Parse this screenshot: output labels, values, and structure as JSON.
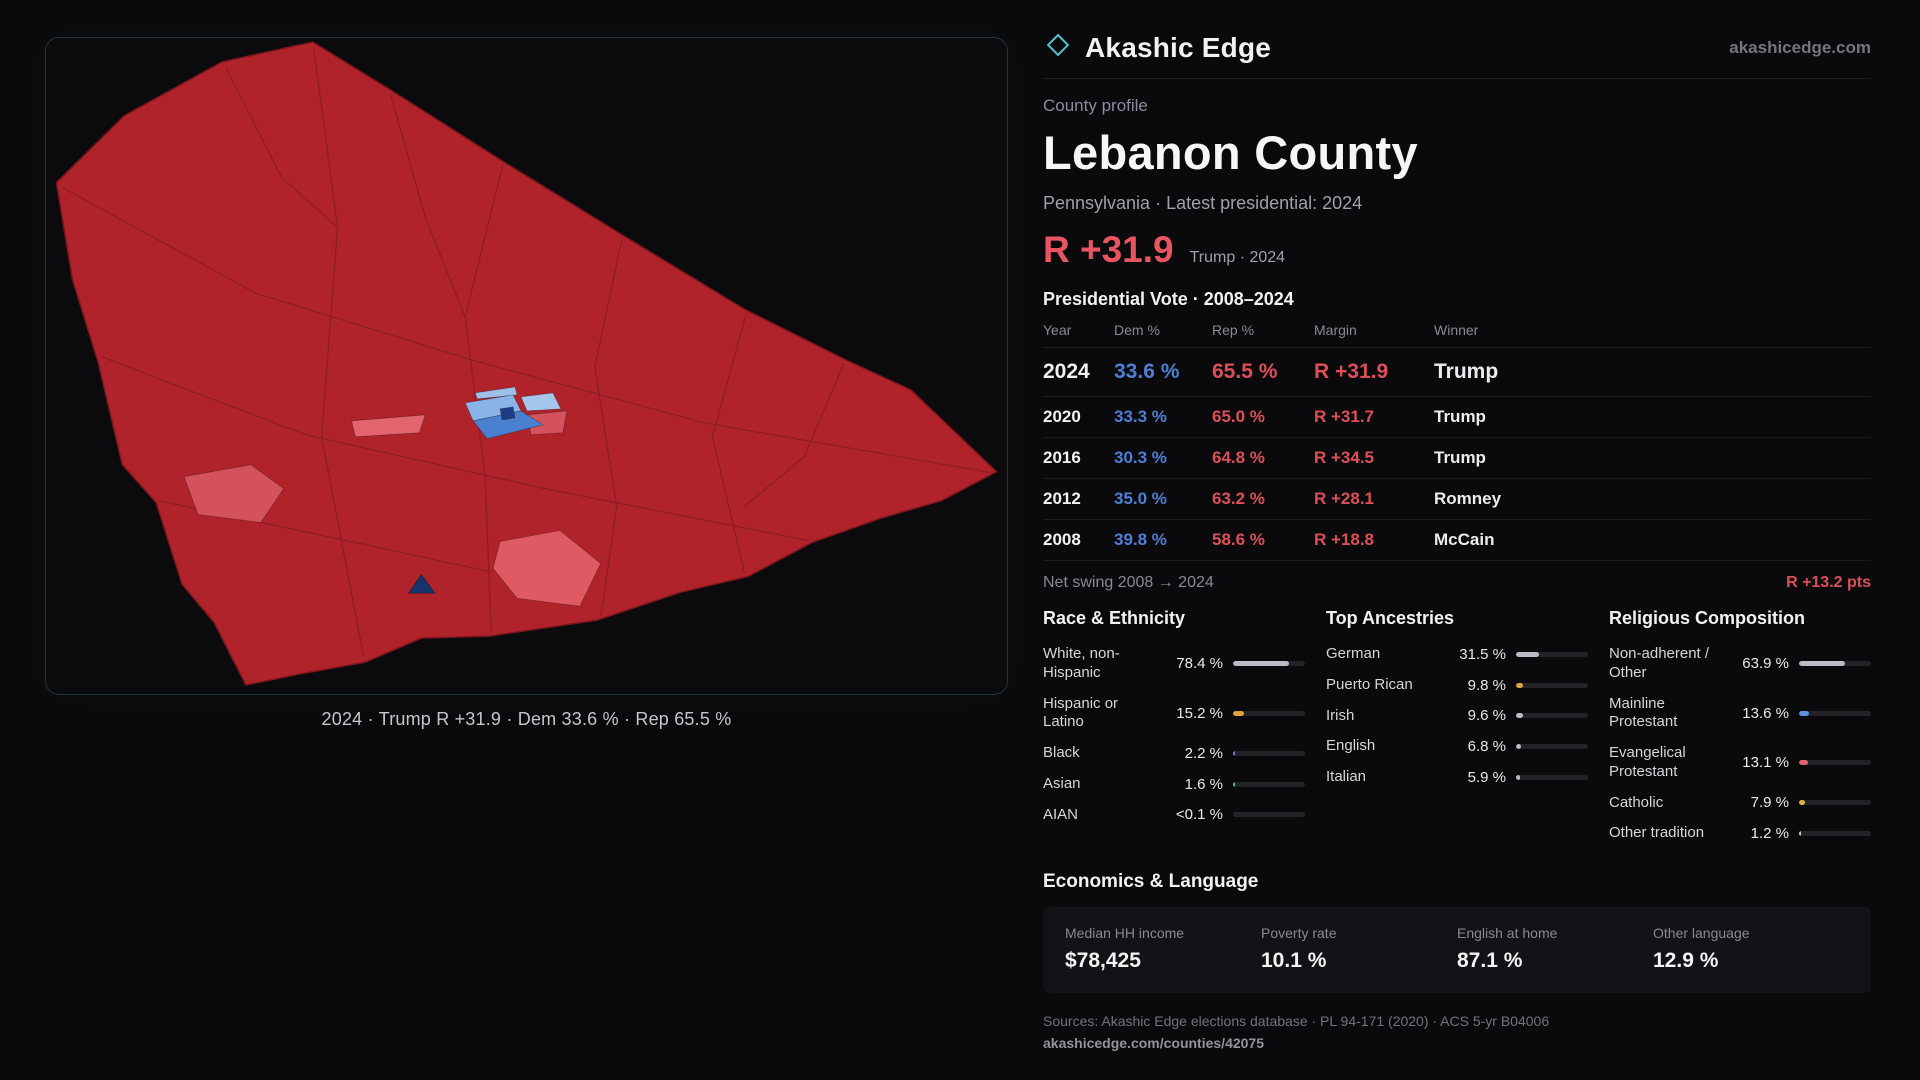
{
  "colors": {
    "dem_blue": "#4d7fd6",
    "rep_red": "#dd4f58",
    "accent_red": "#e85560",
    "map_red": "#b0232b",
    "map_blue": "#4a80d0"
  },
  "header": {
    "brand": "Akashic Edge",
    "site": "akashicedge.com"
  },
  "profile": {
    "eyebrow": "County profile",
    "title": "Lebanon County",
    "subtitle": "Pennsylvania · Latest presidential: 2024",
    "headline_margin": "R +31.9",
    "headline_note": "Trump · 2024"
  },
  "map": {
    "caption": "2024 · Trump R +31.9 · Dem 33.6 % · Rep 65.5 %"
  },
  "vote_table": {
    "title": "Presidential Vote · 2008–2024",
    "columns": [
      "Year",
      "Dem %",
      "Rep %",
      "Margin",
      "Winner"
    ],
    "rows": [
      {
        "year": "2024",
        "dem": "33.6 %",
        "rep": "65.5 %",
        "margin": "R +31.9",
        "winner": "Trump"
      },
      {
        "year": "2020",
        "dem": "33.3 %",
        "rep": "65.0 %",
        "margin": "R +31.7",
        "winner": "Trump"
      },
      {
        "year": "2016",
        "dem": "30.3 %",
        "rep": "64.8 %",
        "margin": "R +34.5",
        "winner": "Trump"
      },
      {
        "year": "2012",
        "dem": "35.0 %",
        "rep": "63.2 %",
        "margin": "R +28.1",
        "winner": "Romney"
      },
      {
        "year": "2008",
        "dem": "39.8 %",
        "rep": "58.6 %",
        "margin": "R +18.8",
        "winner": "McCain"
      }
    ]
  },
  "net_swing": {
    "label": "Net swing 2008 → 2024",
    "value": "R +13.2 pts"
  },
  "race": {
    "title": "Race & Ethnicity",
    "rows": [
      {
        "label": "White, non-Hispanic",
        "value": "78.4 %",
        "pct": 78.4,
        "color": "#b9bcc4"
      },
      {
        "label": "Hispanic or Latino",
        "value": "15.2 %",
        "pct": 15.2,
        "color": "#e0a23e"
      },
      {
        "label": "Black",
        "value": "2.2 %",
        "pct": 2.2,
        "color": "#6b7fd4"
      },
      {
        "label": "Asian",
        "value": "1.6 %",
        "pct": 1.6,
        "color": "#4fae9b"
      },
      {
        "label": "AIAN",
        "value": "<0.1 %",
        "pct": 0,
        "color": "#b9bcc4"
      }
    ]
  },
  "ancestries": {
    "title": "Top Ancestries",
    "rows": [
      {
        "label": "German",
        "value": "31.5 %",
        "pct": 31.5,
        "color": "#b9bcc4"
      },
      {
        "label": "Puerto Rican",
        "value": "9.8 %",
        "pct": 9.8,
        "color": "#e0a23e"
      },
      {
        "label": "Irish",
        "value": "9.6 %",
        "pct": 9.6,
        "color": "#b9bcc4"
      },
      {
        "label": "English",
        "value": "6.8 %",
        "pct": 6.8,
        "color": "#b9bcc4"
      },
      {
        "label": "Italian",
        "value": "5.9 %",
        "pct": 5.9,
        "color": "#b9bcc4"
      }
    ]
  },
  "religion": {
    "title": "Religious Composition",
    "rows": [
      {
        "label": "Non-adherent / Other",
        "value": "63.9 %",
        "pct": 63.9,
        "color": "#b9bcc4"
      },
      {
        "label": "Mainline Protestant",
        "value": "13.6 %",
        "pct": 13.6,
        "color": "#5b8fe0"
      },
      {
        "label": "Evangelical Protestant",
        "value": "13.1 %",
        "pct": 13.1,
        "color": "#e0636c"
      },
      {
        "label": "Catholic",
        "value": "7.9 %",
        "pct": 7.9,
        "color": "#e0b43e"
      },
      {
        "label": "Other tradition",
        "value": "1.2 %",
        "pct": 1.2,
        "color": "#c9c9cf"
      }
    ]
  },
  "economics": {
    "title": "Economics & Language",
    "stats": [
      {
        "label": "Median HH income",
        "value": "$78,425"
      },
      {
        "label": "Poverty rate",
        "value": "10.1 %"
      },
      {
        "label": "English at home",
        "value": "87.1 %"
      },
      {
        "label": "Other language",
        "value": "12.9 %"
      }
    ]
  },
  "footer": {
    "sources": "Sources: Akashic Edge elections database · PL 94-171 (2020) · ACS 5-yr B04006",
    "permalink": "akashicedge.com/counties/42075"
  }
}
